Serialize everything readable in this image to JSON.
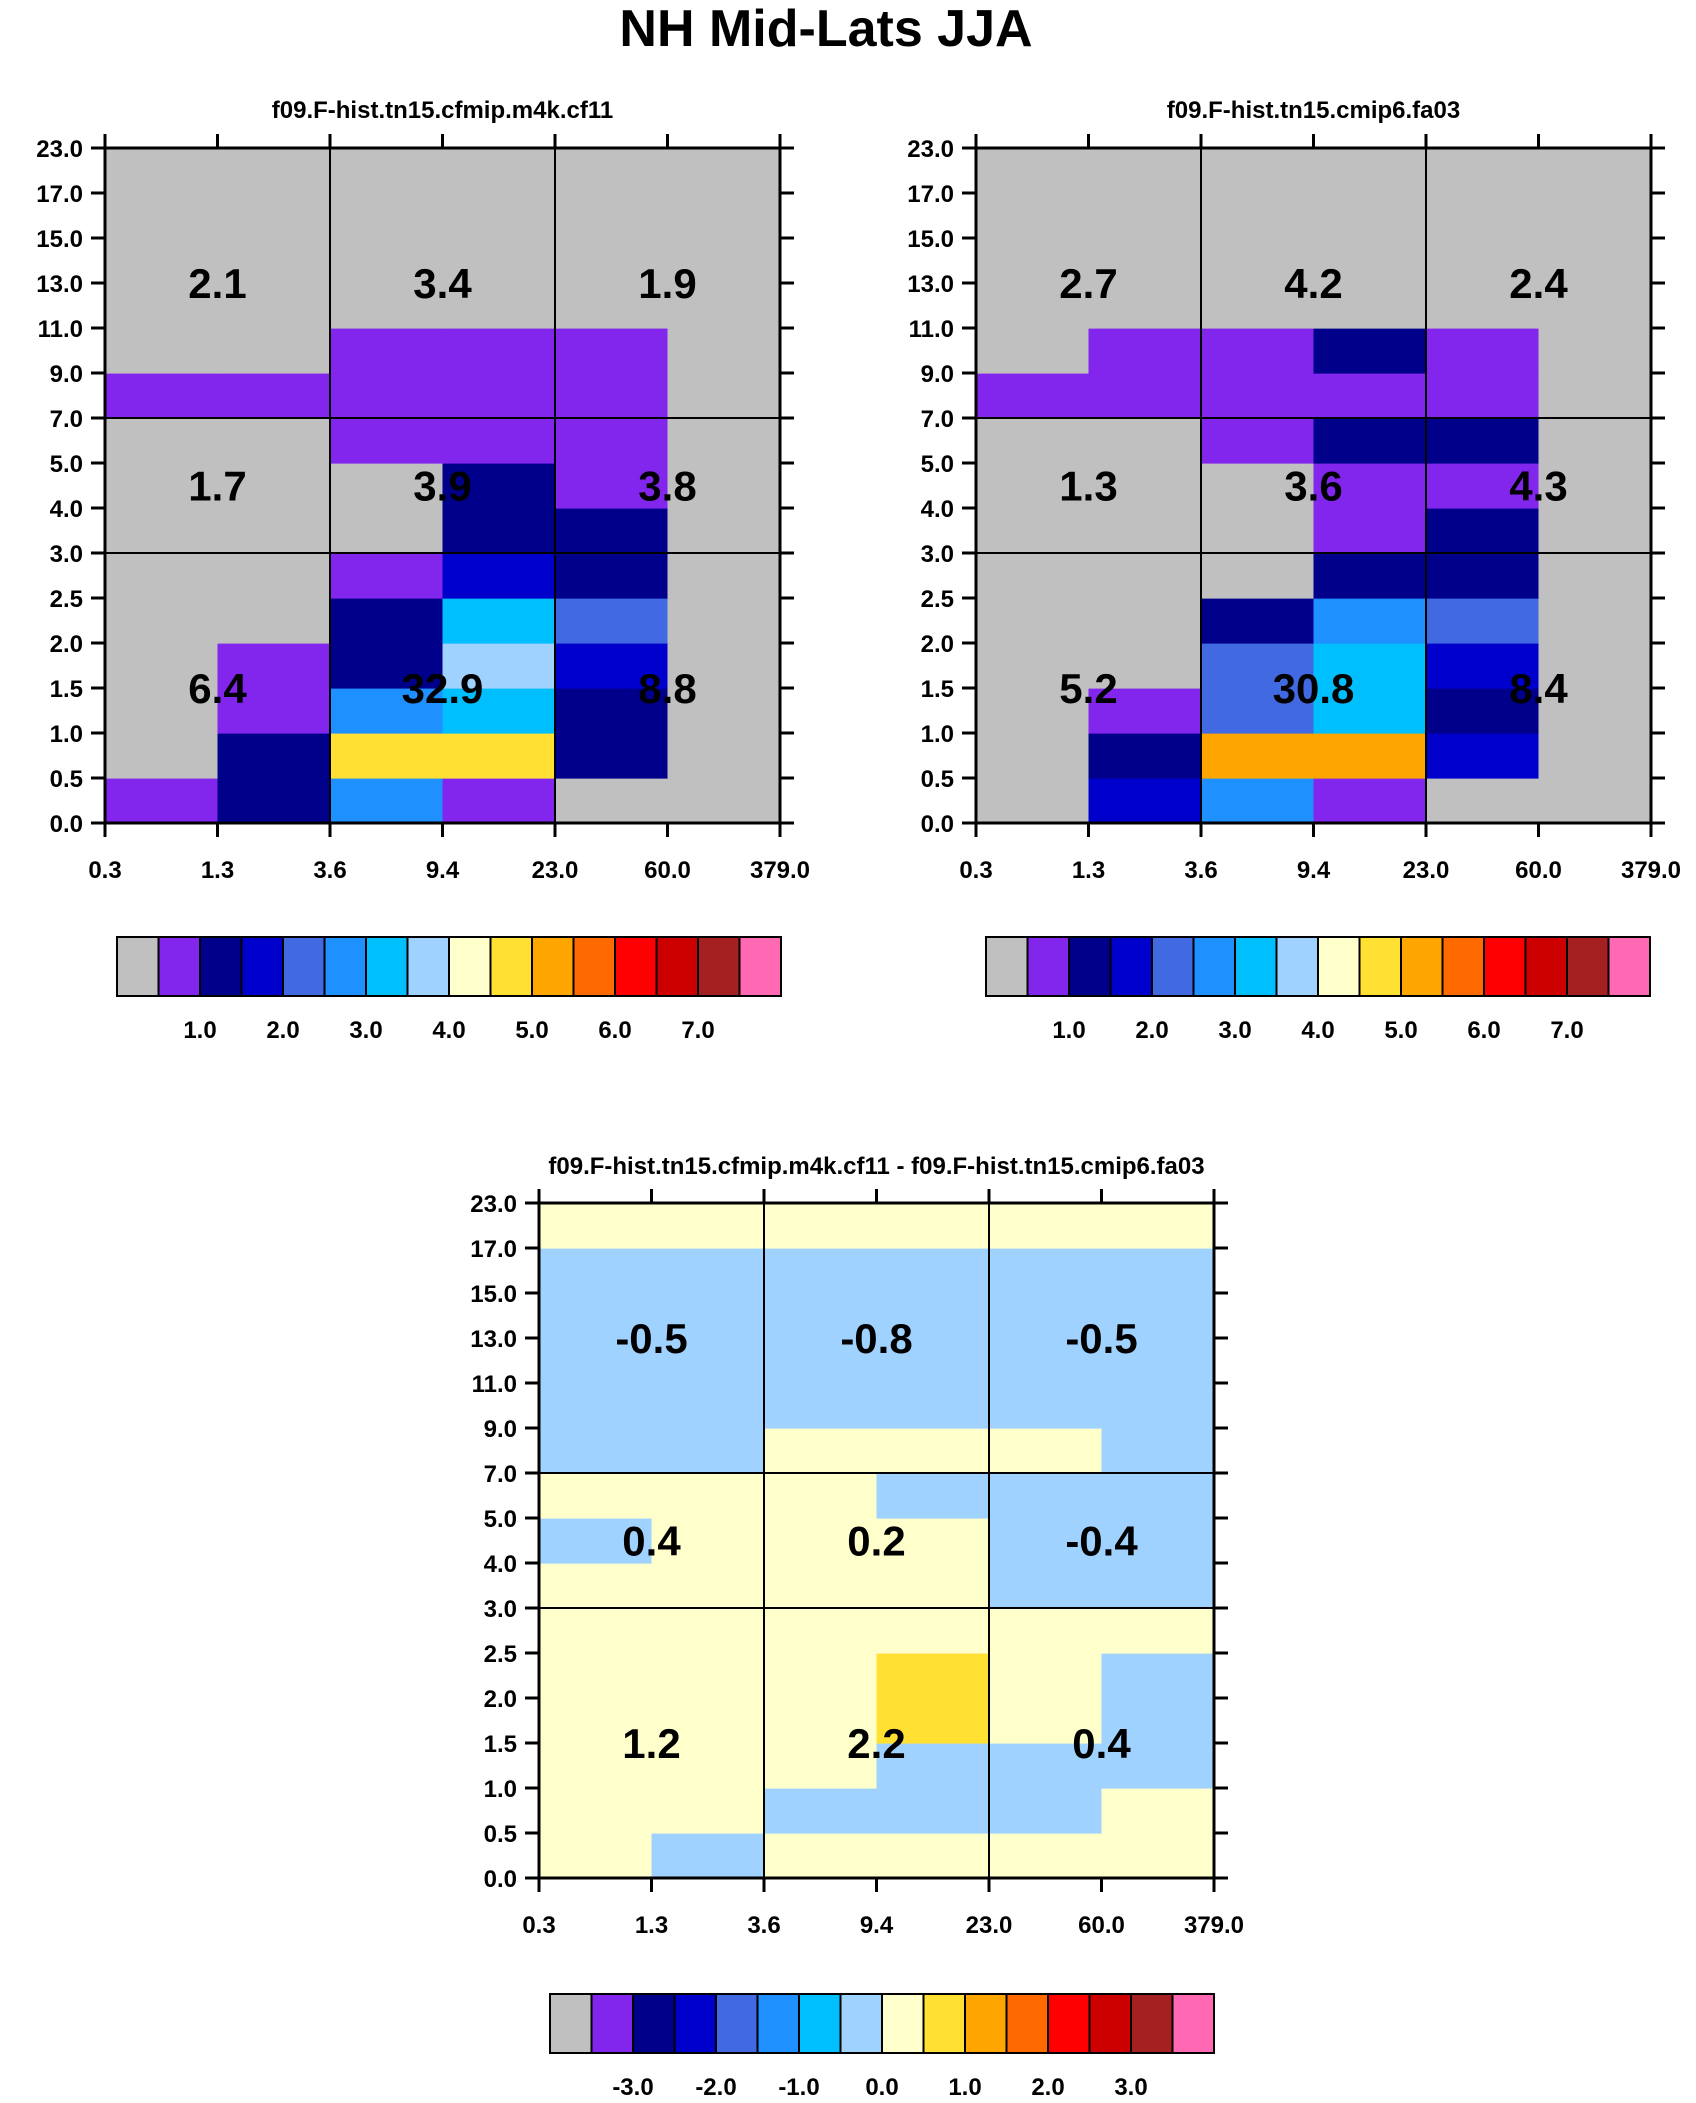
{
  "figure_title": "NH Mid-Lats JJA",
  "colors": {
    "abs_palette": [
      "#c0c0c0",
      "#8225ed",
      "#00008a",
      "#0000cd",
      "#4169e1",
      "#1e90ff",
      "#00bfff",
      "#a0d2ff",
      "#ffffcc",
      "#ffe033",
      "#ffa500",
      "#ff6a00",
      "#ff0000",
      "#cd0000",
      "#a52020",
      "#ff69b4"
    ],
    "diff_palette": [
      "#c0c0c0",
      "#8225ed",
      "#00008a",
      "#0000cd",
      "#4169e1",
      "#1e90ff",
      "#00bfff",
      "#a0d2ff",
      "#ffffcc",
      "#ffe033",
      "#ffa500",
      "#ff6a00",
      "#ff0000",
      "#cd0000",
      "#a52020",
      "#ff69b4"
    ]
  },
  "chart_data": [
    {
      "type": "heatmap",
      "id": "panel1",
      "title": "f09.F-hist.tn15.cfmip.m4k.cf11",
      "x_ticks": [
        "0.3",
        "1.3",
        "3.6",
        "9.4",
        "23.0",
        "60.0",
        "379.0"
      ],
      "y_ticks": [
        "0.0",
        "0.5",
        "1.0",
        "1.5",
        "2.0",
        "2.5",
        "3.0",
        "4.0",
        "5.0",
        "7.0",
        "9.0",
        "11.0",
        "13.0",
        "15.0",
        "17.0",
        "23.0"
      ],
      "grid_rows": [
        [
          1,
          2,
          5,
          1,
          0,
          0
        ],
        [
          0,
          2,
          9,
          9,
          2,
          0
        ],
        [
          0,
          1,
          5,
          6,
          2,
          0
        ],
        [
          0,
          1,
          2,
          7,
          3,
          0
        ],
        [
          0,
          0,
          2,
          6,
          4,
          0
        ],
        [
          0,
          0,
          1,
          3,
          2,
          0
        ],
        [
          0,
          0,
          0,
          2,
          2,
          0
        ],
        [
          0,
          0,
          0,
          2,
          1,
          0
        ],
        [
          0,
          0,
          1,
          1,
          1,
          0
        ],
        [
          1,
          1,
          1,
          1,
          1,
          0
        ],
        [
          0,
          0,
          1,
          1,
          1,
          0
        ],
        [
          0,
          0,
          0,
          0,
          0,
          0
        ],
        [
          0,
          0,
          0,
          0,
          0,
          0
        ],
        [
          0,
          0,
          0,
          0,
          0,
          0
        ],
        [
          0,
          0,
          0,
          0,
          0,
          0
        ]
      ],
      "summary_values": [
        [
          "6.4",
          "32.9",
          "8.8"
        ],
        [
          "1.7",
          "3.9",
          "3.8"
        ],
        [
          "2.1",
          "3.4",
          "1.9"
        ]
      ],
      "colorbar_labels": [
        "1.0",
        "2.0",
        "3.0",
        "4.0",
        "5.0",
        "6.0",
        "7.0"
      ]
    },
    {
      "type": "heatmap",
      "id": "panel2",
      "title": "f09.F-hist.tn15.cmip6.fa03",
      "x_ticks": [
        "0.3",
        "1.3",
        "3.6",
        "9.4",
        "23.0",
        "60.0",
        "379.0"
      ],
      "y_ticks": [
        "0.0",
        "0.5",
        "1.0",
        "1.5",
        "2.0",
        "2.5",
        "3.0",
        "4.0",
        "5.0",
        "7.0",
        "9.0",
        "11.0",
        "13.0",
        "15.0",
        "17.0",
        "23.0"
      ],
      "grid_rows": [
        [
          0,
          3,
          5,
          1,
          0,
          0
        ],
        [
          0,
          2,
          10,
          10,
          3,
          0
        ],
        [
          0,
          1,
          4,
          6,
          2,
          0
        ],
        [
          0,
          0,
          4,
          6,
          3,
          0
        ],
        [
          0,
          0,
          2,
          5,
          4,
          0
        ],
        [
          0,
          0,
          0,
          2,
          2,
          0
        ],
        [
          0,
          0,
          0,
          1,
          2,
          0
        ],
        [
          0,
          0,
          0,
          1,
          1,
          0
        ],
        [
          0,
          0,
          1,
          2,
          2,
          0
        ],
        [
          1,
          1,
          1,
          1,
          1,
          0
        ],
        [
          0,
          1,
          1,
          2,
          1,
          0
        ],
        [
          0,
          0,
          0,
          0,
          0,
          0
        ],
        [
          0,
          0,
          0,
          0,
          0,
          0
        ],
        [
          0,
          0,
          0,
          0,
          0,
          0
        ],
        [
          0,
          0,
          0,
          0,
          0,
          0
        ]
      ],
      "summary_values": [
        [
          "5.2",
          "30.8",
          "8.4"
        ],
        [
          "1.3",
          "3.6",
          "4.3"
        ],
        [
          "2.7",
          "4.2",
          "2.4"
        ]
      ],
      "colorbar_labels": [
        "1.0",
        "2.0",
        "3.0",
        "4.0",
        "5.0",
        "6.0",
        "7.0"
      ]
    },
    {
      "type": "heatmap",
      "id": "panel3",
      "title": "f09.F-hist.tn15.cfmip.m4k.cf11 - f09.F-hist.tn15.cmip6.fa03",
      "x_ticks": [
        "0.3",
        "1.3",
        "3.6",
        "9.4",
        "23.0",
        "60.0",
        "379.0"
      ],
      "y_ticks": [
        "0.0",
        "0.5",
        "1.0",
        "1.5",
        "2.0",
        "2.5",
        "3.0",
        "4.0",
        "5.0",
        "7.0",
        "9.0",
        "11.0",
        "13.0",
        "15.0",
        "17.0",
        "23.0"
      ],
      "grid_rows": [
        [
          8,
          7,
          8,
          8,
          8,
          8
        ],
        [
          8,
          8,
          7,
          7,
          7,
          8
        ],
        [
          8,
          8,
          8,
          7,
          7,
          7
        ],
        [
          8,
          8,
          8,
          9,
          8,
          7
        ],
        [
          8,
          8,
          8,
          9,
          8,
          7
        ],
        [
          8,
          8,
          8,
          8,
          8,
          8
        ],
        [
          8,
          8,
          8,
          8,
          7,
          7
        ],
        [
          7,
          8,
          8,
          8,
          7,
          7
        ],
        [
          8,
          8,
          8,
          7,
          7,
          7
        ],
        [
          7,
          7,
          8,
          8,
          8,
          7
        ],
        [
          7,
          7,
          7,
          7,
          7,
          7
        ],
        [
          7,
          7,
          7,
          7,
          7,
          7
        ],
        [
          7,
          7,
          7,
          7,
          7,
          7
        ],
        [
          7,
          7,
          7,
          7,
          7,
          7
        ],
        [
          8,
          8,
          8,
          8,
          8,
          8
        ]
      ],
      "summary_values": [
        [
          "1.2",
          "2.2",
          "0.4"
        ],
        [
          "0.4",
          "0.2",
          "-0.4"
        ],
        [
          "-0.5",
          "-0.8",
          "-0.5"
        ]
      ],
      "colorbar_labels": [
        "-3.0",
        "-2.0",
        "-1.0",
        "0.0",
        "1.0",
        "2.0",
        "3.0"
      ]
    }
  ]
}
